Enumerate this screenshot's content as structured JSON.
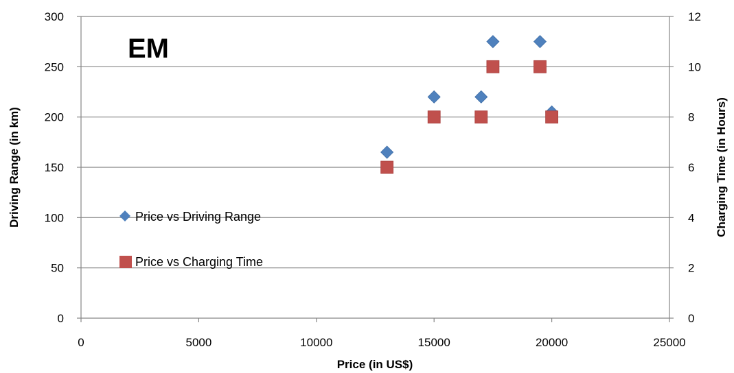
{
  "chart_data": {
    "type": "scatter",
    "annotation": "EM",
    "xlabel": "Price (in US$)",
    "ylabel": "Driving Range (in km)",
    "y2label": "Charging Time (in Hours)",
    "xlim": [
      0,
      25000
    ],
    "ylim": [
      0,
      300
    ],
    "y2lim": [
      0,
      12
    ],
    "x_ticks": [
      "0",
      "5000",
      "10000",
      "15000",
      "20000",
      "25000"
    ],
    "y_ticks": [
      "0",
      "50",
      "100",
      "150",
      "200",
      "250",
      "300"
    ],
    "y2_ticks": [
      "0",
      "2",
      "4",
      "6",
      "8",
      "10",
      "12"
    ],
    "grid": "horizontal",
    "legend_position": "left",
    "series": [
      {
        "name": "Price vs Driving Range",
        "axis": "left",
        "marker": "diamond",
        "color": "#4F81BD",
        "points": [
          {
            "x": 13000,
            "y": 165
          },
          {
            "x": 15000,
            "y": 220
          },
          {
            "x": 17000,
            "y": 220
          },
          {
            "x": 17500,
            "y": 275
          },
          {
            "x": 19500,
            "y": 275
          },
          {
            "x": 20000,
            "y": 205
          }
        ]
      },
      {
        "name": "Price vs Charging Time",
        "axis": "right",
        "marker": "square",
        "color": "#C0504D",
        "points": [
          {
            "x": 13000,
            "y": 6
          },
          {
            "x": 15000,
            "y": 8
          },
          {
            "x": 17000,
            "y": 8
          },
          {
            "x": 17500,
            "y": 10
          },
          {
            "x": 19500,
            "y": 10
          },
          {
            "x": 20000,
            "y": 8
          }
        ]
      }
    ]
  }
}
